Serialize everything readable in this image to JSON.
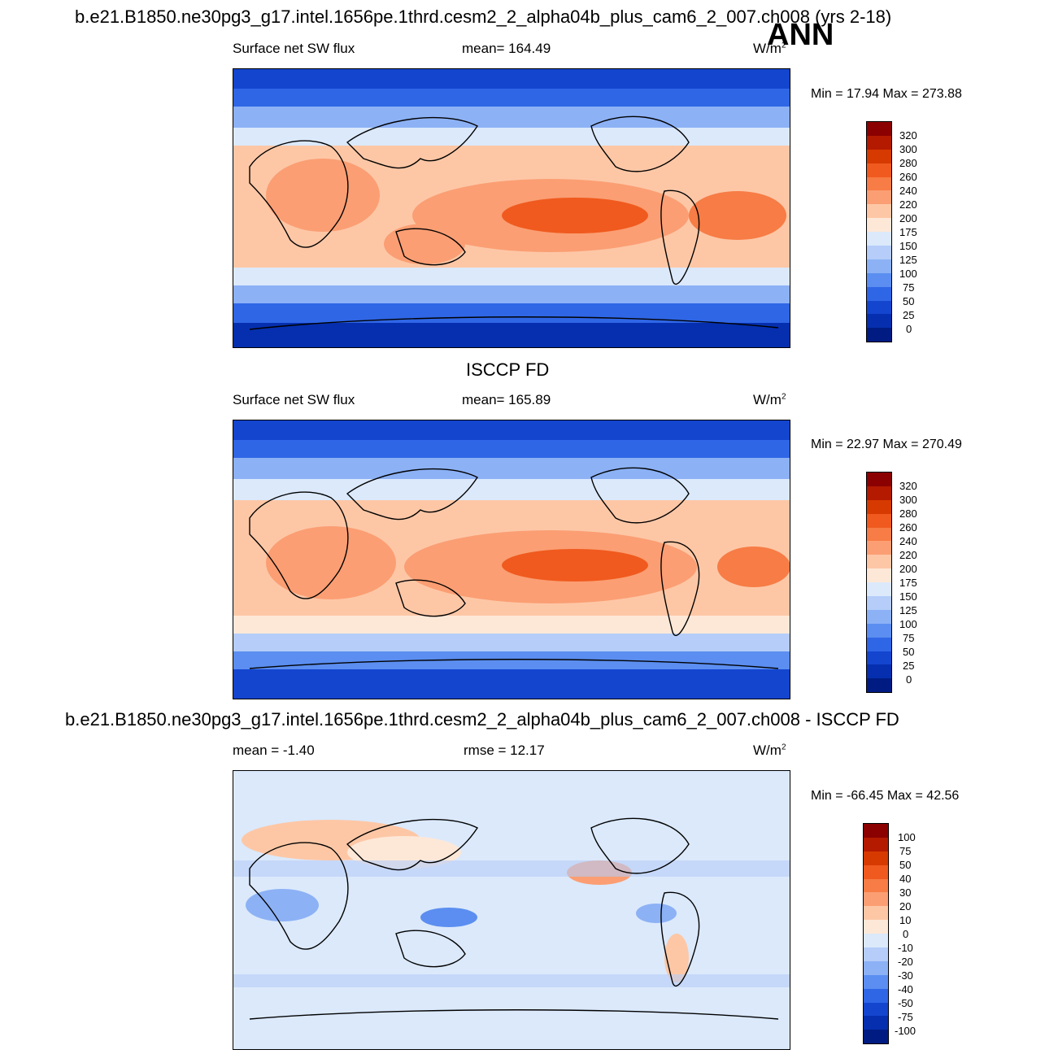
{
  "page": {
    "top_title": "b.e21.B1850.ne30pg3_g17.intel.1656pe.1thrd.cesm2_2_alpha04b_plus_cam6_2_007.ch008 (yrs 2-18)",
    "season": "ANN",
    "mid_title": "ISCCP FD",
    "bottom_title": "b.e21.B1850.ne30pg3_g17.intel.1656pe.1thrd.cesm2_2_alpha04b_plus_cam6_2_007.ch008 - ISCCP FD"
  },
  "chart_data": [
    {
      "type": "heatmap",
      "panel": "model",
      "left_label": "Surface net SW flux",
      "center_label": "mean= 164.49",
      "units_base": "W/m",
      "units_sup": "2",
      "minmax": "Min =  17.94 Max = 273.88",
      "min": 17.94,
      "max": 273.88,
      "mean": 164.49,
      "colorbar_levels": [
        "320",
        "300",
        "280",
        "260",
        "240",
        "220",
        "200",
        "175",
        "150",
        "125",
        "100",
        "75",
        "50",
        "25",
        "0"
      ],
      "colorbar_colors": [
        "#8b0000",
        "#b31a00",
        "#d63a00",
        "#f05a1e",
        "#f77c45",
        "#fb9e73",
        "#fdc7a6",
        "#fde8d8",
        "#dbe9fb",
        "#b5cdf8",
        "#8cb1f5",
        "#5b8ef0",
        "#2f66e6",
        "#1445cf",
        "#052fae",
        "#001c82"
      ]
    },
    {
      "type": "heatmap",
      "panel": "obs",
      "left_label": "Surface net SW flux",
      "center_label": "mean= 165.89",
      "units_base": "W/m",
      "units_sup": "2",
      "minmax": "Min =  22.97 Max = 270.49",
      "min": 22.97,
      "max": 270.49,
      "mean": 165.89,
      "colorbar_levels": [
        "320",
        "300",
        "280",
        "260",
        "240",
        "220",
        "200",
        "175",
        "150",
        "125",
        "100",
        "75",
        "50",
        "25",
        "0"
      ],
      "colorbar_colors": [
        "#8b0000",
        "#b31a00",
        "#d63a00",
        "#f05a1e",
        "#f77c45",
        "#fb9e73",
        "#fdc7a6",
        "#fde8d8",
        "#dbe9fb",
        "#b5cdf8",
        "#8cb1f5",
        "#5b8ef0",
        "#2f66e6",
        "#1445cf",
        "#052fae",
        "#001c82"
      ]
    },
    {
      "type": "heatmap",
      "panel": "difference",
      "left_label": "mean =  -1.40",
      "center_label": "rmse =  12.17",
      "units_base": "W/m",
      "units_sup": "2",
      "minmax": "Min = -66.45 Max =  42.56",
      "min": -66.45,
      "max": 42.56,
      "mean": -1.4,
      "rmse": 12.17,
      "colorbar_levels": [
        "100",
        "75",
        "50",
        "40",
        "30",
        "20",
        "10",
        "0",
        "-10",
        "-20",
        "-30",
        "-40",
        "-50",
        "-75",
        "-100"
      ],
      "colorbar_colors": [
        "#8b0000",
        "#b31a00",
        "#d63a00",
        "#f05a1e",
        "#f77c45",
        "#fb9e73",
        "#fdc7a6",
        "#fde8d8",
        "#dbe9fb",
        "#b5cdf8",
        "#8cb1f5",
        "#5b8ef0",
        "#2f66e6",
        "#1445cf",
        "#052fae",
        "#001c82"
      ]
    }
  ]
}
